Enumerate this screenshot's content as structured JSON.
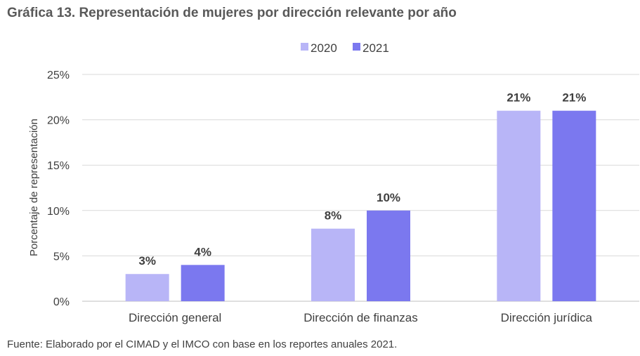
{
  "title": "Gráfica 13. Representación de mujeres por dirección relevante por año",
  "source": "Fuente: Elaborado por el CIMAD y el IMCO con base en los reportes anuales 2021.",
  "chart_data": {
    "type": "bar",
    "categories": [
      "Dirección general",
      "Dirección de finanzas",
      "Dirección jurídica"
    ],
    "series": [
      {
        "name": "2020",
        "values": [
          3,
          8,
          21
        ],
        "labels": [
          "3%",
          "8%",
          "21%"
        ],
        "color": "#b8b5f7"
      },
      {
        "name": "2021",
        "values": [
          4,
          10,
          21
        ],
        "labels": [
          "4%",
          "10%",
          "21%"
        ],
        "color": "#7b78ef"
      }
    ],
    "ylabel": "Porcentaje de representación",
    "ylim": [
      0,
      25
    ],
    "yticks": [
      0,
      5,
      10,
      15,
      20,
      25
    ],
    "ytick_labels": [
      "0%",
      "5%",
      "10%",
      "15%",
      "20%",
      "25%"
    ],
    "grid": true,
    "legend_position": "top-center",
    "gridline_color": "#d9d9d9"
  }
}
